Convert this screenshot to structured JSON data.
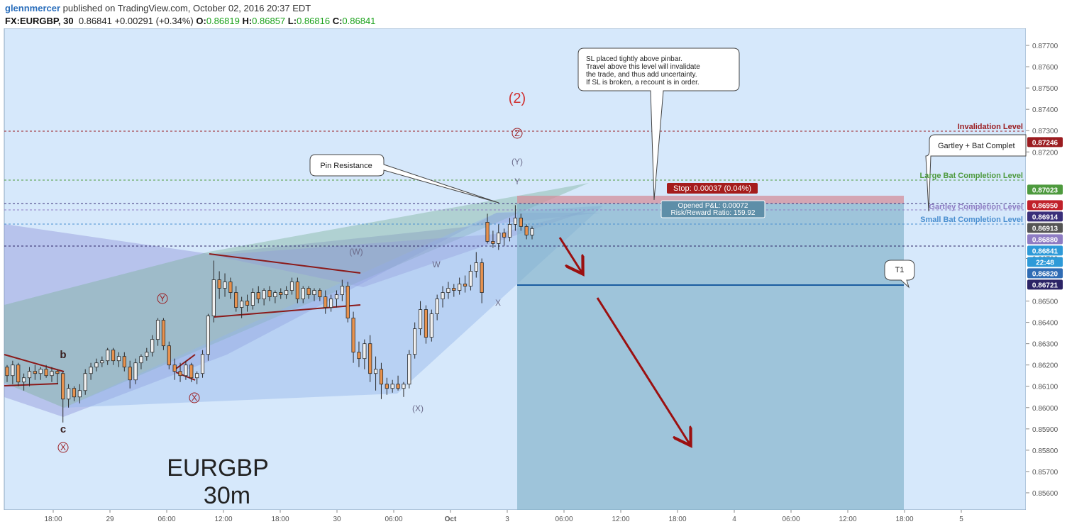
{
  "header": {
    "author": "glennmercer",
    "published_text": "published on TradingView.com, October 02, 2016 20:37 EDT",
    "symbol": "FX:EURGBP, 30",
    "last": "0.86841",
    "change": "+0.00291 (+0.34%)",
    "o_label": "O:",
    "o": "0.86819",
    "h_label": "H:",
    "h": "0.86857",
    "l_label": "L:",
    "l": "0.86816",
    "c_label": "C:",
    "c": "0.86841"
  },
  "watermark": {
    "line1": "EURGBP",
    "line2": "30m"
  },
  "colors": {
    "background": "#d6e8fb",
    "up_candle": "#f0f0f0",
    "down_candle": "#e8924e",
    "invalidation": "#9b1c20",
    "bat_green": "#4e9a3e",
    "gartley_purple": "#8e7cc3",
    "small_bat_blue": "#4a8fd0",
    "arrow": "#9b1010",
    "short_loss": "#d38f9b",
    "short_profit": "#7fb0c8"
  },
  "chart_data": {
    "type": "candlestick",
    "symbol": "FX:EURGBP",
    "interval": "30m",
    "ylim": [
      0.8552,
      0.8778
    ],
    "y_ticks": [
      "0.87700",
      "0.87600",
      "0.87500",
      "0.87400",
      "0.87300",
      "0.87200",
      "0.86700",
      "0.86500",
      "0.86400",
      "0.86300",
      "0.86200",
      "0.86100",
      "0.86000",
      "0.85900",
      "0.85800",
      "0.85700",
      "0.85600"
    ],
    "x_ticks": [
      "18:00",
      "29",
      "06:00",
      "12:00",
      "18:00",
      "30",
      "06:00",
      "Oct",
      "3",
      "06:00",
      "12:00",
      "18:00",
      "4",
      "06:00",
      "12:00",
      "18:00",
      "5"
    ],
    "price_tags": [
      {
        "value": "0.87246",
        "bg": "#9b1c20",
        "fg": "#ffffff"
      },
      {
        "value": "0.87023",
        "bg": "#4e9a3e",
        "fg": "#ffffff"
      },
      {
        "value": "0.86950",
        "bg": "#c0202a",
        "fg": "#ffffff"
      },
      {
        "value": "0.86914",
        "bg": "#3a2f7a",
        "fg": "#ffffff"
      },
      {
        "value": "0.86913",
        "bg": "#555555",
        "fg": "#ffffff"
      },
      {
        "value": "0.86880",
        "bg": "#8e7cc3",
        "fg": "#ffffff"
      },
      {
        "value": "0.86841",
        "bg": "#2e9ad8",
        "fg": "#ffffff"
      },
      {
        "value": "22:48",
        "bg": "#2e9ad8",
        "fg": "#ffffff"
      },
      {
        "value": "0.86820",
        "bg": "#2f6cb4",
        "fg": "#ffffff"
      },
      {
        "value": "0.86721",
        "bg": "#2c2466",
        "fg": "#ffffff"
      }
    ],
    "levels": [
      {
        "label": "Invalidation Level",
        "value": 0.87246,
        "color": "#9b1c20"
      },
      {
        "label": "Large Bat Completion Level",
        "value": 0.8695,
        "color": "#4e9a3e"
      },
      {
        "label": "Gartley Completion Level",
        "value": 0.8688,
        "color": "#8e7cc3"
      },
      {
        "label": "Small Bat Completion Level",
        "value": 0.86841,
        "color": "#4a8fd0"
      },
      {
        "label": "",
        "value": 0.86914,
        "color": "#3a2f7a"
      },
      {
        "label": "",
        "value": 0.86721,
        "color": "#3a2f7a"
      }
    ],
    "wave_labels": [
      "(2)",
      "Z",
      "(Y)",
      "Y",
      "(W)",
      "W",
      "X",
      "Y",
      "X",
      "(X)",
      "X",
      "b",
      "c"
    ],
    "annotations": {
      "pin_resistance": "Pin Resistance",
      "sl_note": [
        "SL placed tightly above pinbar.",
        "Travel above this level will invalidate",
        "the trade, and thus add uncertainty.",
        "If SL is broken, a recount is in order."
      ],
      "gartley_bat": "Gartley + Bat Complet",
      "t1": "T1",
      "stop": "Stop: 0.00037 (0.04%)",
      "pnl": "Opened P&L: 0.00072",
      "rr": "Risk/Reward Ratio: 159.92"
    },
    "candles": [
      [
        0.8619,
        0.862,
        0.8612,
        0.8615
      ],
      [
        0.8615,
        0.8622,
        0.8611,
        0.862
      ],
      [
        0.862,
        0.8621,
        0.861,
        0.8612
      ],
      [
        0.8612,
        0.8616,
        0.8608,
        0.8614
      ],
      [
        0.8614,
        0.8619,
        0.861,
        0.8617
      ],
      [
        0.8617,
        0.862,
        0.8613,
        0.8616
      ],
      [
        0.8616,
        0.8619,
        0.8613,
        0.8618
      ],
      [
        0.8618,
        0.862,
        0.8614,
        0.8615
      ],
      [
        0.8615,
        0.8619,
        0.8612,
        0.8617
      ],
      [
        0.8617,
        0.8618,
        0.8611,
        0.8616
      ],
      [
        0.8616,
        0.8617,
        0.8593,
        0.8604
      ],
      [
        0.8604,
        0.8611,
        0.86,
        0.8609
      ],
      [
        0.8609,
        0.861,
        0.8603,
        0.8605
      ],
      [
        0.8605,
        0.8611,
        0.8602,
        0.8608
      ],
      [
        0.8608,
        0.8618,
        0.8606,
        0.8616
      ],
      [
        0.8616,
        0.8621,
        0.8613,
        0.8619
      ],
      [
        0.8619,
        0.8623,
        0.8617,
        0.8621
      ],
      [
        0.8621,
        0.8624,
        0.8619,
        0.8622
      ],
      [
        0.8622,
        0.8628,
        0.862,
        0.8627
      ],
      [
        0.8627,
        0.8628,
        0.862,
        0.8622
      ],
      [
        0.8622,
        0.8626,
        0.8619,
        0.8624
      ],
      [
        0.8624,
        0.8626,
        0.8617,
        0.8619
      ],
      [
        0.8619,
        0.8622,
        0.8609,
        0.8613
      ],
      [
        0.8613,
        0.8623,
        0.8611,
        0.8621
      ],
      [
        0.8621,
        0.8625,
        0.8618,
        0.8624
      ],
      [
        0.8624,
        0.8628,
        0.8622,
        0.8626
      ],
      [
        0.8626,
        0.8634,
        0.8624,
        0.8632
      ],
      [
        0.8632,
        0.8642,
        0.8629,
        0.8641
      ],
      [
        0.8641,
        0.8642,
        0.8627,
        0.8629
      ],
      [
        0.8629,
        0.8631,
        0.8618,
        0.862
      ],
      [
        0.862,
        0.8623,
        0.8613,
        0.8617
      ],
      [
        0.8617,
        0.8621,
        0.8612,
        0.8615
      ],
      [
        0.8615,
        0.8622,
        0.8613,
        0.862
      ],
      [
        0.862,
        0.8621,
        0.8612,
        0.8614
      ],
      [
        0.8614,
        0.8617,
        0.8611,
        0.8616
      ],
      [
        0.8616,
        0.8627,
        0.8614,
        0.8625
      ],
      [
        0.8625,
        0.8644,
        0.8622,
        0.8643
      ],
      [
        0.8643,
        0.8669,
        0.864,
        0.866
      ],
      [
        0.866,
        0.8664,
        0.8651,
        0.8656
      ],
      [
        0.8656,
        0.8663,
        0.8652,
        0.8659
      ],
      [
        0.8659,
        0.8661,
        0.8651,
        0.8654
      ],
      [
        0.8654,
        0.8657,
        0.8645,
        0.8647
      ],
      [
        0.8647,
        0.8652,
        0.8642,
        0.865
      ],
      [
        0.865,
        0.8653,
        0.8645,
        0.8648
      ],
      [
        0.8648,
        0.8656,
        0.8646,
        0.8654
      ],
      [
        0.8654,
        0.8657,
        0.8649,
        0.8651
      ],
      [
        0.8651,
        0.8656,
        0.8648,
        0.8655
      ],
      [
        0.8655,
        0.8657,
        0.865,
        0.8652
      ],
      [
        0.8652,
        0.8655,
        0.8649,
        0.8654
      ],
      [
        0.8654,
        0.8656,
        0.8651,
        0.8653
      ],
      [
        0.8653,
        0.8657,
        0.8651,
        0.8655
      ],
      [
        0.8655,
        0.8661,
        0.8653,
        0.8659
      ],
      [
        0.8659,
        0.8661,
        0.8649,
        0.8651
      ],
      [
        0.8651,
        0.8657,
        0.8649,
        0.8656
      ],
      [
        0.8656,
        0.8657,
        0.8651,
        0.8653
      ],
      [
        0.8653,
        0.8656,
        0.865,
        0.8655
      ],
      [
        0.8655,
        0.8656,
        0.865,
        0.8652
      ],
      [
        0.8652,
        0.8655,
        0.8644,
        0.8647
      ],
      [
        0.8647,
        0.8653,
        0.8645,
        0.8651
      ],
      [
        0.8651,
        0.8655,
        0.8647,
        0.8653
      ],
      [
        0.8653,
        0.866,
        0.865,
        0.8657
      ],
      [
        0.8657,
        0.8659,
        0.864,
        0.8642
      ],
      [
        0.8642,
        0.8645,
        0.8621,
        0.8626
      ],
      [
        0.8626,
        0.8631,
        0.8619,
        0.8623
      ],
      [
        0.8623,
        0.8632,
        0.8618,
        0.863
      ],
      [
        0.863,
        0.8634,
        0.8612,
        0.8616
      ],
      [
        0.8616,
        0.8624,
        0.8608,
        0.8618
      ],
      [
        0.8618,
        0.8621,
        0.8604,
        0.8611
      ],
      [
        0.8611,
        0.8614,
        0.8606,
        0.8609
      ],
      [
        0.8609,
        0.8613,
        0.8607,
        0.8611
      ],
      [
        0.8611,
        0.8615,
        0.8608,
        0.8609
      ],
      [
        0.8609,
        0.8612,
        0.8605,
        0.8611
      ],
      [
        0.8611,
        0.8627,
        0.8609,
        0.8625
      ],
      [
        0.8625,
        0.864,
        0.8623,
        0.8637
      ],
      [
        0.8637,
        0.865,
        0.8634,
        0.8646
      ],
      [
        0.8646,
        0.8648,
        0.863,
        0.8633
      ],
      [
        0.8633,
        0.8646,
        0.8631,
        0.8644
      ],
      [
        0.8644,
        0.8653,
        0.8641,
        0.8651
      ],
      [
        0.8651,
        0.8657,
        0.8647,
        0.8654
      ],
      [
        0.8654,
        0.8659,
        0.8651,
        0.8656
      ],
      [
        0.8656,
        0.8658,
        0.8652,
        0.8655
      ],
      [
        0.8655,
        0.8661,
        0.8653,
        0.8658
      ],
      [
        0.8658,
        0.8662,
        0.8654,
        0.8657
      ],
      [
        0.8657,
        0.8667,
        0.8655,
        0.8664
      ],
      [
        0.8664,
        0.8673,
        0.8661,
        0.8668
      ],
      [
        0.8668,
        0.867,
        0.8649,
        0.8654
      ],
      [
        0.8687,
        0.8691,
        0.8677,
        0.8678
      ],
      [
        0.8678,
        0.8683,
        0.8675,
        0.8677
      ],
      [
        0.8677,
        0.8686,
        0.8674,
        0.8682
      ],
      [
        0.8682,
        0.8684,
        0.8676,
        0.868
      ],
      [
        0.868,
        0.8689,
        0.8678,
        0.8686
      ],
      [
        0.8686,
        0.8695,
        0.8683,
        0.8689
      ],
      [
        0.8689,
        0.8691,
        0.8683,
        0.8685
      ],
      [
        0.8685,
        0.8686,
        0.8679,
        0.8681
      ],
      [
        0.8681,
        0.8685,
        0.8679,
        0.8684
      ]
    ]
  }
}
